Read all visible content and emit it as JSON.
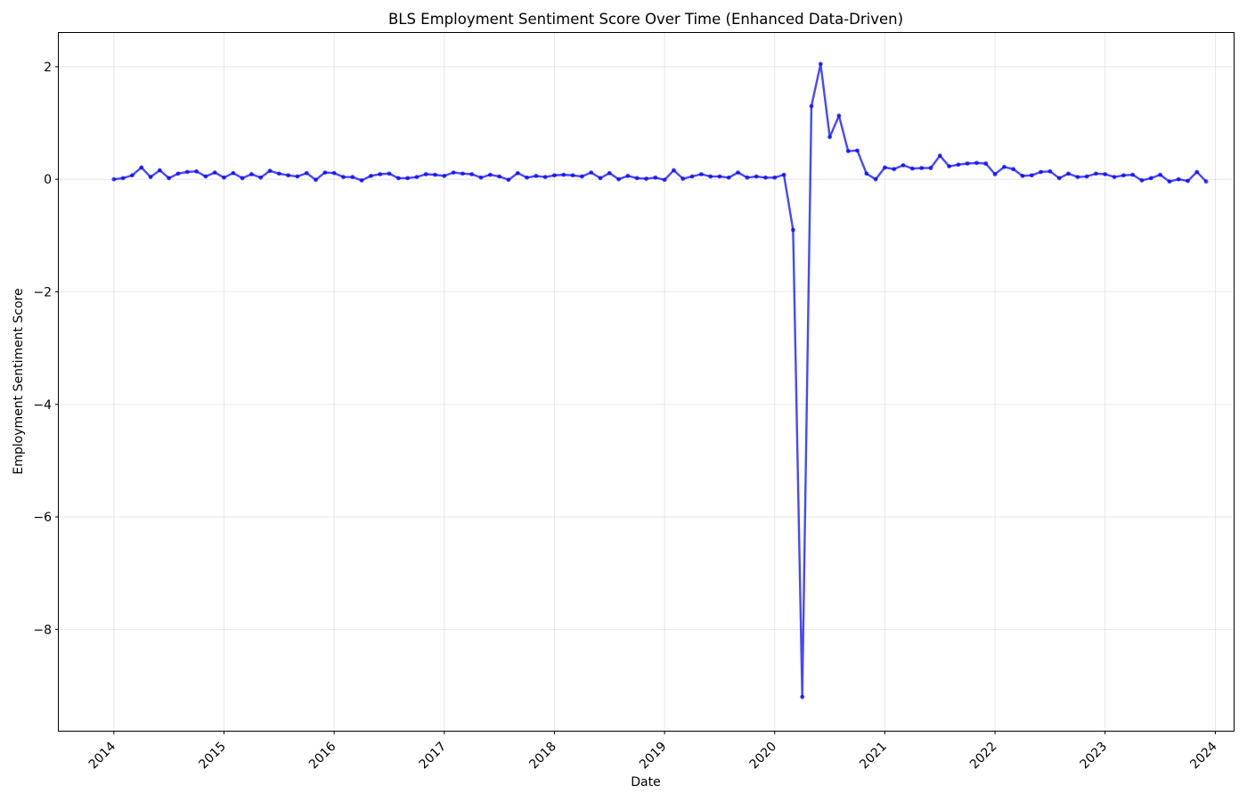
{
  "chart_data": {
    "type": "line",
    "title": "BLS Employment Sentiment Score Over Time (Enhanced Data-Driven)",
    "xlabel": "Date",
    "ylabel": "Employment Sentiment Score",
    "x_ticks": [
      "2014",
      "2015",
      "2016",
      "2017",
      "2018",
      "2019",
      "2020",
      "2021",
      "2022",
      "2023",
      "2024"
    ],
    "y_ticks": [
      2,
      0,
      -2,
      -4,
      -6,
      -8
    ],
    "y_tick_labels": [
      "2",
      "0",
      "−2",
      "−4",
      "−6",
      "−8"
    ],
    "xlim": [
      "2013-07",
      "2024-03"
    ],
    "ylim": [
      -9.8,
      2.6
    ],
    "grid": true,
    "color": "#0000ff",
    "series": [
      {
        "x": [
          "2014-01",
          "2014-02",
          "2014-03",
          "2014-04",
          "2014-05",
          "2014-06",
          "2014-07",
          "2014-08",
          "2014-09",
          "2014-10",
          "2014-11",
          "2014-12",
          "2015-01",
          "2015-02",
          "2015-03",
          "2015-04",
          "2015-05",
          "2015-06",
          "2015-07",
          "2015-08",
          "2015-09",
          "2015-10",
          "2015-11",
          "2015-12",
          "2016-01",
          "2016-02",
          "2016-03",
          "2016-04",
          "2016-05",
          "2016-06",
          "2016-07",
          "2016-08",
          "2016-09",
          "2016-10",
          "2016-11",
          "2016-12",
          "2017-01",
          "2017-02",
          "2017-03",
          "2017-04",
          "2017-05",
          "2017-06",
          "2017-07",
          "2017-08",
          "2017-09",
          "2017-10",
          "2017-11",
          "2017-12",
          "2018-01",
          "2018-02",
          "2018-03",
          "2018-04",
          "2018-05",
          "2018-06",
          "2018-07",
          "2018-08",
          "2018-09",
          "2018-10",
          "2018-11",
          "2018-12",
          "2019-01",
          "2019-02",
          "2019-03",
          "2019-04",
          "2019-05",
          "2019-06",
          "2019-07",
          "2019-08",
          "2019-09",
          "2019-10",
          "2019-11",
          "2019-12",
          "2020-01",
          "2020-02",
          "2020-03",
          "2020-04",
          "2020-05",
          "2020-06",
          "2020-07",
          "2020-08",
          "2020-09",
          "2020-10",
          "2020-11",
          "2020-12",
          "2021-01",
          "2021-02",
          "2021-03",
          "2021-04",
          "2021-05",
          "2021-06",
          "2021-07",
          "2021-08",
          "2021-09",
          "2021-10",
          "2021-11",
          "2021-12",
          "2022-01",
          "2022-02",
          "2022-03",
          "2022-04",
          "2022-05",
          "2022-06",
          "2022-07",
          "2022-08",
          "2022-09",
          "2022-10",
          "2022-11",
          "2022-12",
          "2023-01",
          "2023-02",
          "2023-03",
          "2023-04",
          "2023-05",
          "2023-06",
          "2023-07",
          "2023-08",
          "2023-09",
          "2023-10",
          "2023-11",
          "2023-12"
        ],
        "y": [
          0.0,
          0.02,
          0.07,
          0.21,
          0.04,
          0.16,
          0.02,
          0.1,
          0.13,
          0.14,
          0.05,
          0.12,
          0.03,
          0.11,
          0.02,
          0.09,
          0.03,
          0.15,
          0.1,
          0.07,
          0.05,
          0.11,
          -0.01,
          0.12,
          0.11,
          0.04,
          0.04,
          -0.02,
          0.06,
          0.09,
          0.1,
          0.02,
          0.02,
          0.04,
          0.09,
          0.08,
          0.06,
          0.12,
          0.1,
          0.09,
          0.03,
          0.08,
          0.05,
          -0.01,
          0.11,
          0.03,
          0.06,
          0.04,
          0.07,
          0.08,
          0.07,
          0.05,
          0.12,
          0.02,
          0.11,
          0.0,
          0.06,
          0.02,
          0.01,
          0.03,
          -0.01,
          0.16,
          0.01,
          0.05,
          0.09,
          0.05,
          0.05,
          0.03,
          0.12,
          0.03,
          0.05,
          0.03,
          0.03,
          0.08,
          -0.9,
          -9.2,
          1.3,
          2.05,
          0.75,
          1.13,
          0.5,
          0.51,
          0.1,
          0.0,
          0.21,
          0.18,
          0.25,
          0.19,
          0.2,
          0.2,
          0.42,
          0.23,
          0.26,
          0.28,
          0.29,
          0.28,
          0.09,
          0.22,
          0.18,
          0.06,
          0.07,
          0.13,
          0.14,
          0.02,
          0.1,
          0.04,
          0.05,
          0.1,
          0.09,
          0.04,
          0.07,
          0.08,
          -0.02,
          0.02,
          0.08,
          -0.04,
          0.0,
          -0.03,
          0.13,
          -0.04
        ]
      }
    ]
  }
}
